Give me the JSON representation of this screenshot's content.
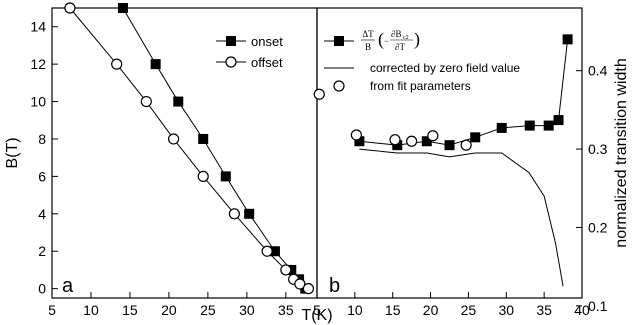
{
  "chart_data": [
    {
      "panel": "a",
      "type": "line",
      "xlabel": "T(K)",
      "ylabel": "B(T)",
      "xlim": [
        5,
        39
      ],
      "ylim": [
        -0.5,
        15
      ],
      "xticks": [
        5,
        10,
        15,
        20,
        25,
        30,
        35
      ],
      "yticks": [
        0,
        2,
        4,
        6,
        8,
        10,
        12,
        14
      ],
      "legend_position": "top-right",
      "series": [
        {
          "name": "onset",
          "marker": "filled-square",
          "x": [
            14.1,
            18.3,
            21.2,
            24.4,
            27.3,
            30.3,
            33.6,
            35.7,
            36.7,
            37.5
          ],
          "y": [
            15,
            12,
            10,
            8,
            6,
            4,
            2,
            1,
            0.5,
            0
          ]
        },
        {
          "name": "offset",
          "marker": "open-circle",
          "x": [
            7.3,
            13.3,
            17.1,
            20.6,
            24.4,
            28.4,
            32.6,
            35,
            36,
            36.8,
            37.9
          ],
          "y": [
            15,
            12,
            10,
            8,
            6,
            4,
            2,
            1,
            0.5,
            0.25,
            0
          ]
        }
      ]
    },
    {
      "panel": "b",
      "type": "line",
      "xlabel": "T(K)",
      "ylabel": "normalized transition width",
      "xlim": [
        5,
        40
      ],
      "ylim": [
        0.11,
        0.48
      ],
      "xticks": [
        5,
        10,
        15,
        20,
        25,
        30,
        35,
        40
      ],
      "yticks": [
        0.1,
        0.2,
        0.3,
        0.4
      ],
      "legend_position": "top",
      "series": [
        {
          "name": "ΔT/B (−∂Bc2/∂T)",
          "marker": "filled-square",
          "x": [
            10.6,
            15.6,
            19.5,
            22.5,
            25.9,
            29.4,
            33.1,
            35.6,
            36.9,
            38.1
          ],
          "y": [
            0.31,
            0.305,
            0.31,
            0.305,
            0.315,
            0.327,
            0.33,
            0.33,
            0.337,
            0.44
          ]
        },
        {
          "name": "corrected by zero field value",
          "marker": "none",
          "x": [
            10.6,
            15.6,
            19.5,
            22.5,
            25.9,
            29.4,
            33,
            35,
            36.5,
            37.5
          ],
          "y": [
            0.3,
            0.295,
            0.295,
            0.29,
            0.295,
            0.295,
            0.27,
            0.24,
            0.18,
            0.125
          ]
        },
        {
          "name": "from fit parameters",
          "marker": "open-circle",
          "x": [
            5.3,
            10.2,
            15.3,
            17.5,
            20.3,
            24.7
          ],
          "y": [
            0.37,
            0.318,
            0.312,
            0.31,
            0.317,
            0.305
          ]
        }
      ]
    }
  ],
  "labels": {
    "panel_a": "a",
    "panel_b": "b",
    "legend_b_numerator": "ΔT",
    "legend_b_denominator": "B",
    "legend_b_inner_numerator": "∂B",
    "legend_b_inner_sub": "c2",
    "legend_b_inner_denominator": "∂T"
  }
}
